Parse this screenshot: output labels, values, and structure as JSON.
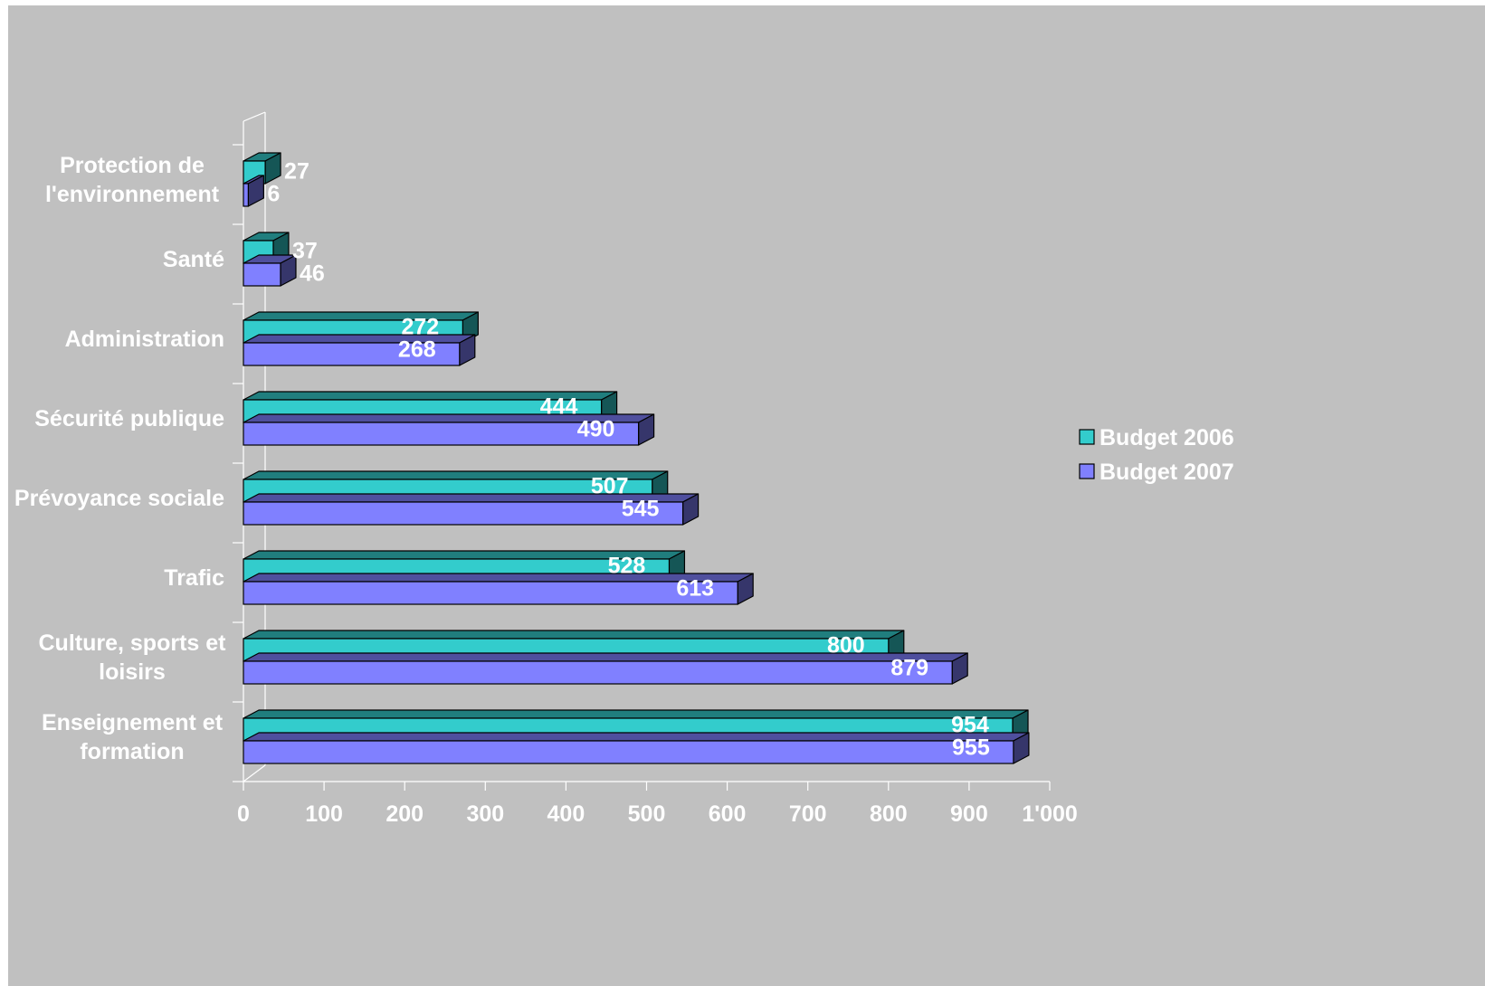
{
  "chart_data": {
    "type": "bar",
    "orientation": "horizontal",
    "three_d": true,
    "categories": [
      "Enseignement et formation",
      "Culture, sports et loisirs",
      "Trafic",
      "Prévoyance sociale",
      "Sécurité publique",
      "Administration",
      "Santé",
      "Protection de l'environnement"
    ],
    "category_lines": [
      [
        "Enseignement et",
        "formation"
      ],
      [
        "Culture, sports et",
        "loisirs"
      ],
      [
        "Trafic"
      ],
      [
        "Prévoyance sociale"
      ],
      [
        "Sécurité publique"
      ],
      [
        "Administration"
      ],
      [
        "Santé"
      ],
      [
        "Protection de",
        "l'environnement"
      ]
    ],
    "series": [
      {
        "name": "Budget 2006",
        "color": "#33cccc",
        "values": [
          954,
          800,
          528,
          507,
          444,
          272,
          37,
          27
        ]
      },
      {
        "name": "Budget 2007",
        "color": "#8080ff",
        "values": [
          955,
          879,
          613,
          545,
          490,
          268,
          46,
          6
        ]
      }
    ],
    "xlim": [
      0,
      1000
    ],
    "ticks": [
      {
        "value": 0,
        "label": "0"
      },
      {
        "value": 100,
        "label": "100"
      },
      {
        "value": 200,
        "label": "200"
      },
      {
        "value": 300,
        "label": "300"
      },
      {
        "value": 400,
        "label": "400"
      },
      {
        "value": 500,
        "label": "500"
      },
      {
        "value": 600,
        "label": "600"
      },
      {
        "value": 700,
        "label": "700"
      },
      {
        "value": 800,
        "label": "800"
      },
      {
        "value": 900,
        "label": "900"
      },
      {
        "value": 1000,
        "label": "1'000"
      }
    ],
    "title": "",
    "xlabel": "",
    "ylabel": "",
    "grid": false,
    "legend_position": "right",
    "background_color": "#c0c0c0"
  }
}
